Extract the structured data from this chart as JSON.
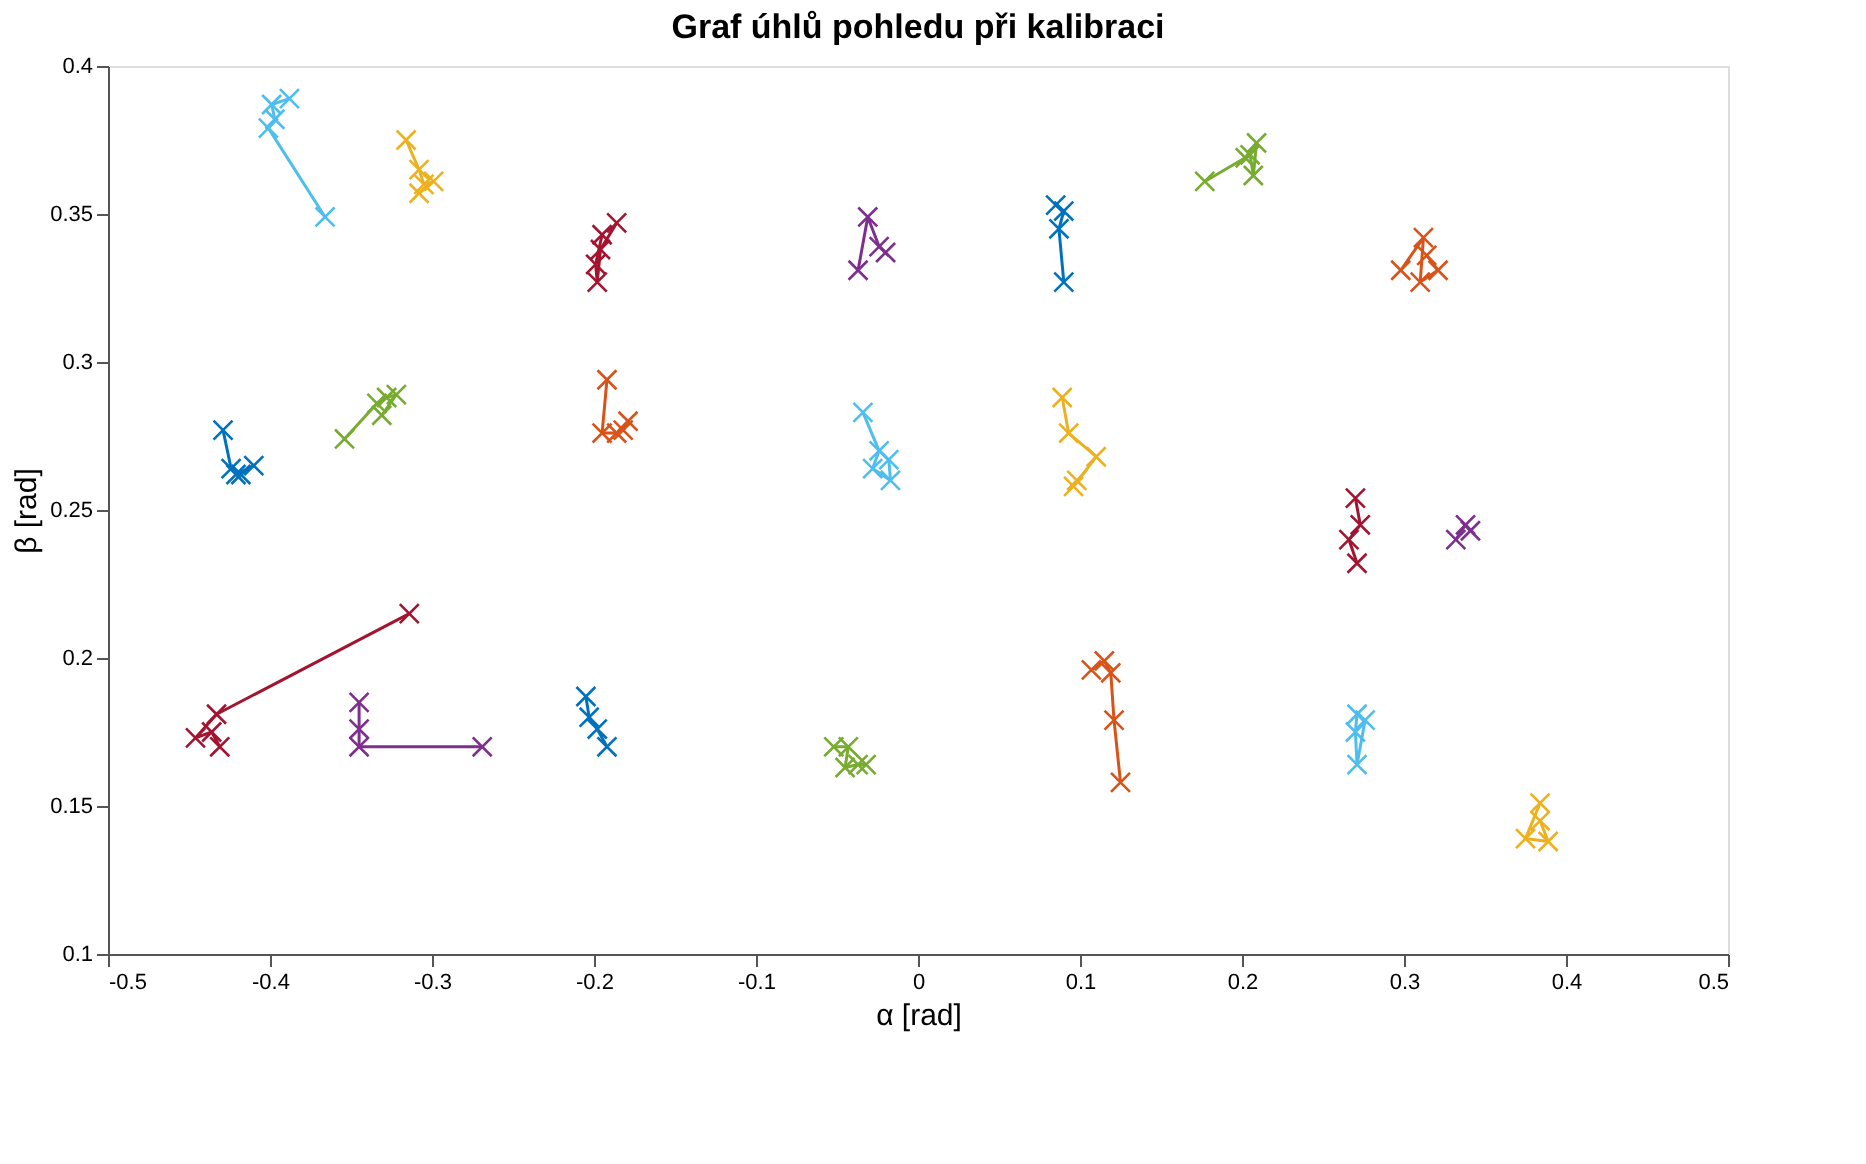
{
  "chart_data": {
    "type": "line",
    "title": "Graf úhlů pohledu při kalibraci",
    "xlabel": "α [rad]",
    "ylabel": "β [rad]",
    "xlim": [
      -0.5,
      0.5
    ],
    "xticks": [
      -0.5,
      -0.4,
      -0.3,
      -0.2,
      -0.1,
      0,
      0.1,
      0.2,
      0.3,
      0.4,
      0.5
    ],
    "ylim": [
      0.1,
      0.4
    ],
    "yticks": [
      0.1,
      0.15,
      0.2,
      0.25,
      0.3,
      0.35,
      0.4
    ],
    "marker": "cross",
    "line_style": "solid",
    "grid": false,
    "legend": false,
    "series": [
      {
        "color": "#4dbeee",
        "x": [
          -0.366,
          -0.401,
          -0.397,
          -0.399,
          -0.388
        ],
        "values": [
          0.349,
          0.379,
          0.382,
          0.387,
          0.389
        ]
      },
      {
        "color": "#edb120",
        "x": [
          -0.316,
          -0.308,
          -0.305,
          -0.299,
          -0.308
        ],
        "values": [
          0.375,
          0.365,
          0.36,
          0.361,
          0.357
        ]
      },
      {
        "color": "#a2142f",
        "x": [
          -0.195,
          -0.199,
          -0.198,
          -0.196,
          -0.186
        ],
        "values": [
          0.343,
          0.333,
          0.327,
          0.338,
          0.347
        ]
      },
      {
        "color": "#d95319",
        "x": [
          -0.192,
          -0.195,
          -0.186,
          -0.179,
          -0.182
        ],
        "values": [
          0.294,
          0.276,
          0.276,
          0.28,
          0.277
        ]
      },
      {
        "color": "#0072bd",
        "x": [
          -0.429,
          -0.424,
          -0.418,
          -0.41,
          -0.421
        ],
        "values": [
          0.277,
          0.264,
          0.262,
          0.265,
          0.262
        ]
      },
      {
        "color": "#77ac30",
        "x": [
          -0.354,
          -0.334,
          -0.328,
          -0.322,
          -0.331
        ],
        "values": [
          0.274,
          0.286,
          0.288,
          0.289,
          0.282
        ]
      },
      {
        "color": "#a2142f",
        "x": [
          -0.314,
          -0.433,
          -0.446,
          -0.436,
          -0.431
        ],
        "values": [
          0.215,
          0.181,
          0.173,
          0.175,
          0.17
        ]
      },
      {
        "color": "#7e2f8e",
        "x": [
          -0.345,
          -0.345,
          -0.345,
          -0.269
        ],
        "values": [
          0.185,
          0.176,
          0.17,
          0.17
        ]
      },
      {
        "color": "#0072bd",
        "x": [
          -0.205,
          -0.203,
          -0.198,
          -0.192
        ],
        "values": [
          0.187,
          0.18,
          0.176,
          0.17
        ]
      },
      {
        "color": "#77ac30",
        "x": [
          -0.052,
          -0.043,
          -0.045,
          -0.037,
          -0.032
        ],
        "values": [
          0.17,
          0.17,
          0.163,
          0.164,
          0.164
        ]
      },
      {
        "color": "#d95319",
        "x": [
          0.107,
          0.115,
          0.119,
          0.121,
          0.125
        ],
        "values": [
          0.196,
          0.199,
          0.195,
          0.179,
          0.158
        ]
      },
      {
        "color": "#7e2f8e",
        "x": [
          -0.037,
          -0.031,
          -0.024,
          -0.02
        ],
        "values": [
          0.331,
          0.349,
          0.339,
          0.337
        ]
      },
      {
        "color": "#4dbeee",
        "x": [
          -0.034,
          -0.024,
          -0.028,
          -0.017,
          -0.018
        ],
        "values": [
          0.283,
          0.27,
          0.264,
          0.26,
          0.267
        ]
      },
      {
        "color": "#0072bd",
        "x": [
          0.085,
          0.09,
          0.087,
          0.09
        ],
        "values": [
          0.353,
          0.351,
          0.345,
          0.327
        ]
      },
      {
        "color": "#edb120",
        "x": [
          0.089,
          0.093,
          0.11,
          0.096,
          0.098
        ],
        "values": [
          0.288,
          0.276,
          0.268,
          0.258,
          0.26
        ]
      },
      {
        "color": "#77ac30",
        "x": [
          0.177,
          0.202,
          0.209,
          0.207,
          0.205
        ],
        "values": [
          0.361,
          0.369,
          0.374,
          0.363,
          0.37
        ]
      },
      {
        "color": "#d95319",
        "x": [
          0.298,
          0.312,
          0.31,
          0.321,
          0.314
        ],
        "values": [
          0.331,
          0.342,
          0.327,
          0.331,
          0.336
        ]
      },
      {
        "color": "#a2142f",
        "x": [
          0.27,
          0.273,
          0.266,
          0.271
        ],
        "values": [
          0.254,
          0.245,
          0.24,
          0.232
        ]
      },
      {
        "color": "#7e2f8e",
        "x": [
          0.332,
          0.338,
          0.341
        ],
        "values": [
          0.24,
          0.245,
          0.243
        ]
      },
      {
        "color": "#4dbeee",
        "x": [
          0.271,
          0.27,
          0.271,
          0.276
        ],
        "values": [
          0.181,
          0.175,
          0.164,
          0.179
        ]
      },
      {
        "color": "#edb120",
        "x": [
          0.384,
          0.375,
          0.389,
          0.384
        ],
        "values": [
          0.151,
          0.139,
          0.138,
          0.145
        ]
      }
    ]
  }
}
